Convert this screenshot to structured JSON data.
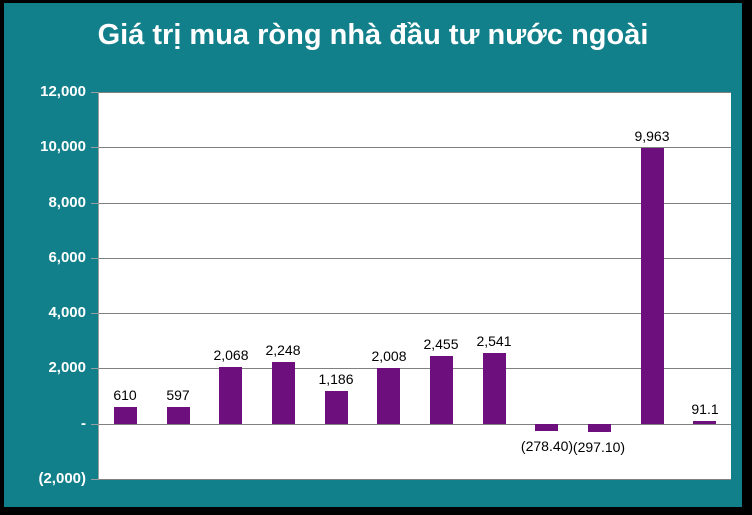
{
  "title": "Giá trị mua ròng nhà đầu tư nước ngoài",
  "colors": {
    "frame": "#000000",
    "background": "#12808A",
    "plot_background": "#FFFFFF",
    "bar": "#6D0F7D",
    "gridline": "#808080",
    "title_text": "#FFFFFF",
    "axis_text": "#FFFFFF",
    "data_label_text": "#000000"
  },
  "chart_data": {
    "type": "bar",
    "title": "Giá trị mua ròng nhà đầu tư nước ngoài",
    "xlabel": "",
    "ylabel": "",
    "values": [
      610,
      597,
      2068,
      2248,
      1186,
      2008,
      2455,
      2541,
      -278.4,
      -297.1,
      9963,
      91.1
    ],
    "value_labels": [
      "610",
      "597",
      "2,068",
      "2,248",
      "1,186",
      "2,008",
      "2,455",
      "2,541",
      "(278.40)",
      "(297.10)",
      "9,963",
      "91.1"
    ],
    "x_tick_labels": [],
    "y_axis": {
      "min": -2000,
      "max": 12000,
      "step": 2000,
      "tick_labels": [
        "12,000",
        "10,000",
        "8,000",
        "6,000",
        "4,000",
        "2,000",
        "-",
        "(2,000)"
      ]
    },
    "grid": true,
    "legend": false,
    "data_labels_visible": true
  }
}
